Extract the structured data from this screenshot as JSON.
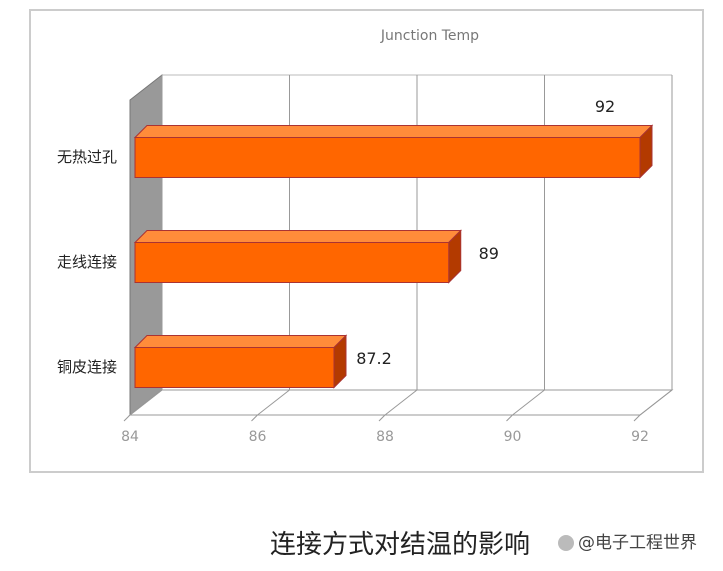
{
  "chart_data": {
    "type": "bar3d",
    "title": "Junction Temp",
    "categories": [
      "无热过孔",
      "走线连接",
      "铜皮连接"
    ],
    "values": [
      92,
      89,
      87.2
    ],
    "color": "#ff6600",
    "xlim": [
      84,
      92
    ],
    "xticks": [
      84,
      86,
      88,
      90,
      92
    ],
    "grid": true
  },
  "caption": "连接方式对结温的影响",
  "watermark": "@电子工程世界"
}
